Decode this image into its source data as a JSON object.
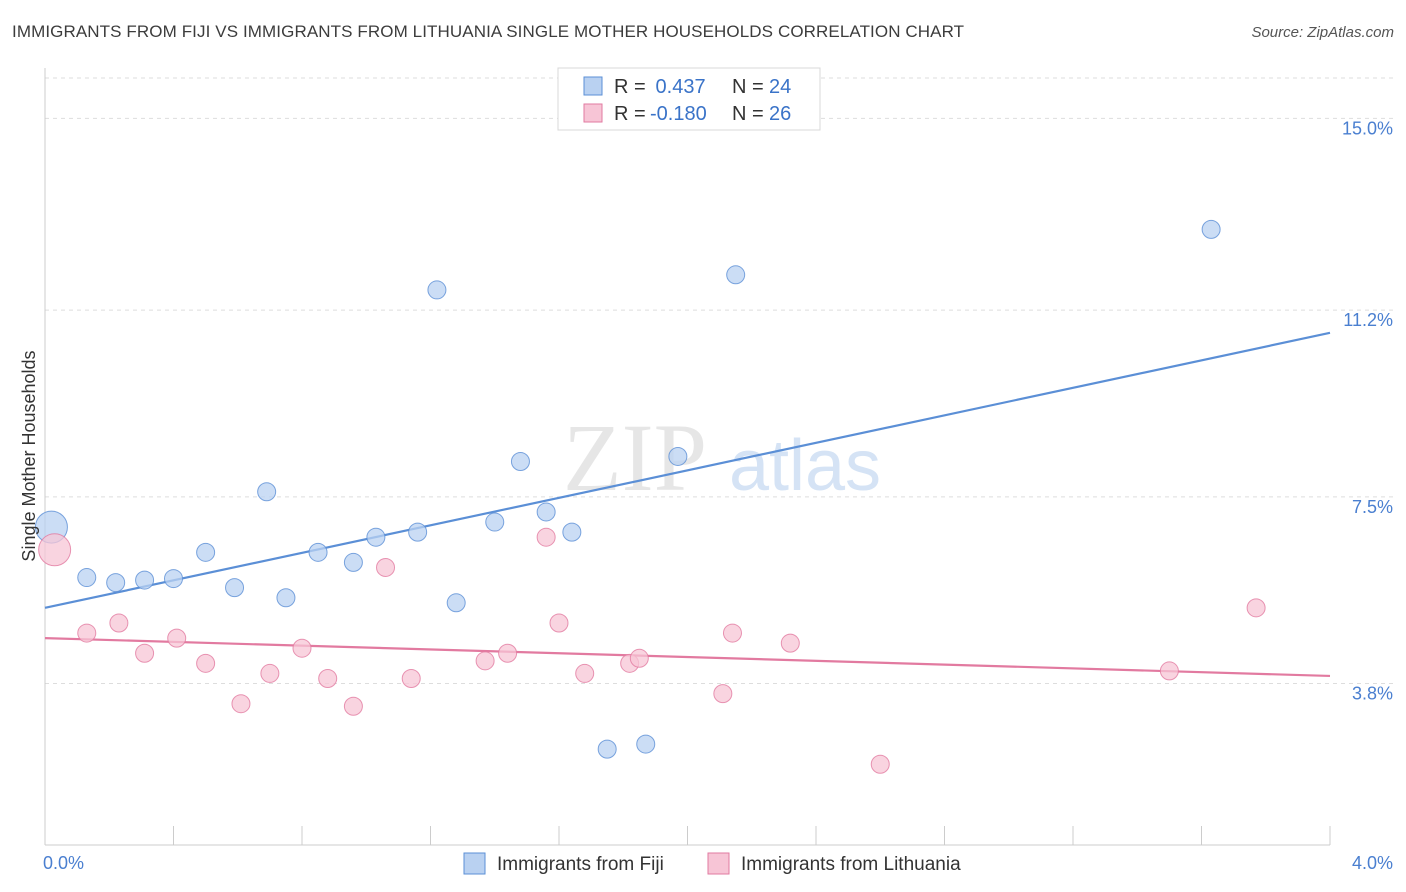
{
  "header": {
    "title": "IMMIGRANTS FROM FIJI VS IMMIGRANTS FROM LITHUANIA SINGLE MOTHER HOUSEHOLDS CORRELATION CHART",
    "source": "Source: ZipAtlas.com"
  },
  "watermark": {
    "zip": "ZIP",
    "atlas": "atlas"
  },
  "chart_data": {
    "type": "scatter",
    "title": "IMMIGRANTS FROM FIJI VS IMMIGRANTS FROM LITHUANIA SINGLE MOTHER HOUSEHOLDS CORRELATION CHART",
    "xlabel": "",
    "ylabel": "Single Mother Households",
    "xlim": [
      0,
      4.0
    ],
    "ylim": [
      0.6,
      15.8
    ],
    "x_tick_labels": [
      "0.0%",
      "4.0%"
    ],
    "y_ticks": [
      3.8,
      7.5,
      11.2,
      15.0
    ],
    "y_tick_labels": [
      "3.8%",
      "7.5%",
      "11.2%",
      "15.0%"
    ],
    "grid": true,
    "legend_position": "top-center",
    "series": [
      {
        "name": "Immigrants from Fiji",
        "color": "#5b8fd6",
        "fill": "#b9d1f1",
        "R": "0.437",
        "N": "24",
        "points": [
          [
            0.02,
            6.9
          ],
          [
            0.13,
            5.9
          ],
          [
            0.22,
            5.8
          ],
          [
            0.31,
            5.85
          ],
          [
            0.4,
            5.88
          ],
          [
            0.5,
            6.4
          ],
          [
            0.59,
            5.7
          ],
          [
            0.69,
            7.6
          ],
          [
            0.75,
            5.5
          ],
          [
            0.85,
            6.4
          ],
          [
            0.96,
            6.2
          ],
          [
            1.03,
            6.7
          ],
          [
            1.16,
            6.8
          ],
          [
            1.22,
            11.6
          ],
          [
            1.28,
            5.4
          ],
          [
            1.4,
            7.0
          ],
          [
            1.48,
            8.2
          ],
          [
            1.56,
            7.2
          ],
          [
            1.64,
            6.8
          ],
          [
            1.75,
            2.5
          ],
          [
            1.87,
            2.6
          ],
          [
            1.97,
            8.3
          ],
          [
            2.15,
            11.9
          ],
          [
            3.63,
            12.8
          ]
        ],
        "trend": {
          "x": [
            0,
            4.0
          ],
          "y": [
            5.3,
            10.75
          ]
        }
      },
      {
        "name": "Immigrants from Lithuania",
        "color": "#e27aa0",
        "fill": "#f7c5d6",
        "R": "-0.180",
        "N": "26",
        "points": [
          [
            0.03,
            6.45
          ],
          [
            0.13,
            4.8
          ],
          [
            0.23,
            5.0
          ],
          [
            0.31,
            4.4
          ],
          [
            0.41,
            4.7
          ],
          [
            0.5,
            4.2
          ],
          [
            0.61,
            3.4
          ],
          [
            0.7,
            4.0
          ],
          [
            0.8,
            4.5
          ],
          [
            0.88,
            3.9
          ],
          [
            0.96,
            3.35
          ],
          [
            1.06,
            6.1
          ],
          [
            1.14,
            3.9
          ],
          [
            1.37,
            4.25
          ],
          [
            1.44,
            4.4
          ],
          [
            1.56,
            6.7
          ],
          [
            1.6,
            5.0
          ],
          [
            1.68,
            4.0
          ],
          [
            1.82,
            4.2
          ],
          [
            1.85,
            4.3
          ],
          [
            2.11,
            3.6
          ],
          [
            2.14,
            4.8
          ],
          [
            2.32,
            4.6
          ],
          [
            2.6,
            2.2
          ],
          [
            3.5,
            4.05
          ],
          [
            3.77,
            5.3
          ]
        ],
        "trend": {
          "x": [
            0,
            4.0
          ],
          "y": [
            4.7,
            3.95
          ]
        }
      }
    ]
  },
  "legend": {
    "r_label": "R =",
    "n_label": "N ="
  }
}
